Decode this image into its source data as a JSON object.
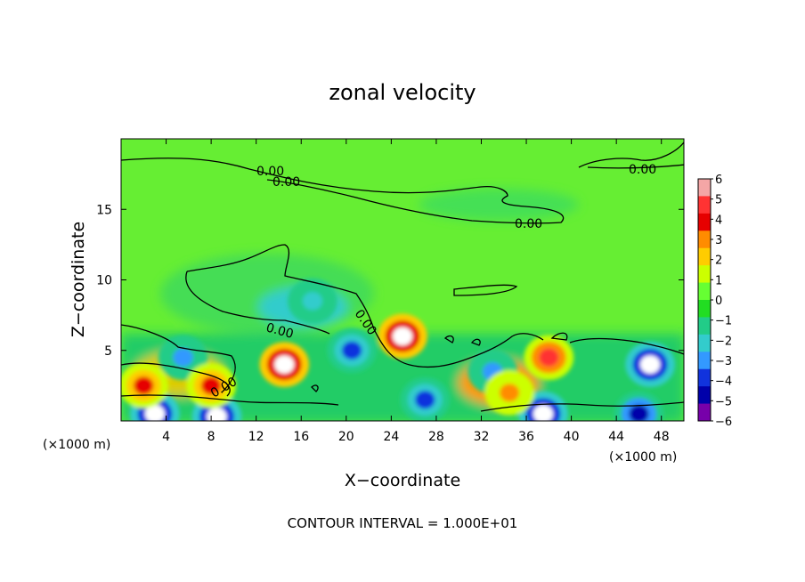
{
  "chart_data": {
    "type": "heatmap",
    "title": "zonal velocity",
    "xlabel": "X−coordinate",
    "ylabel": "Z−coordinate",
    "x_unit_left": "(×1000 m)",
    "x_unit_right": "(×1000 m)",
    "xlim": [
      0,
      50
    ],
    "ylim": [
      0,
      20
    ],
    "x_ticks": [
      4,
      8,
      12,
      16,
      20,
      24,
      28,
      32,
      36,
      40,
      44,
      48
    ],
    "y_ticks": [
      5,
      10,
      15
    ],
    "colorbar": {
      "ticks": [
        "6",
        "5",
        "4",
        "3",
        "2",
        "1",
        "0",
        "−1",
        "−2",
        "−3",
        "−4",
        "−5",
        "−6"
      ],
      "range": [
        -6,
        6
      ],
      "colors": [
        "#f4a6a6",
        "#ff3333",
        "#e60000",
        "#ff8c00",
        "#ffcc00",
        "#ccff00",
        "#66ff33",
        "#22dd22",
        "#22cc88",
        "#33cccc",
        "#3399ff",
        "#1133dd",
        "#0000aa",
        "#7700aa"
      ]
    },
    "contour_labels": [
      "0.00",
      "0.00",
      "0.00",
      "0.00",
      "0.00",
      "0.00",
      "0.00"
    ],
    "contour_interval_text": "CONTOUR INTERVAL = 1.000E+01",
    "features": [
      {
        "x": 25.0,
        "y": 6.0,
        "value": 6
      },
      {
        "x": 14.5,
        "y": 4.0,
        "value": 6
      },
      {
        "x": 38.0,
        "y": 4.5,
        "value": 5
      },
      {
        "x": 37.5,
        "y": 0.5,
        "value": -6
      },
      {
        "x": 47.0,
        "y": 4.0,
        "value": -6
      },
      {
        "x": 46.0,
        "y": 0.5,
        "value": -5
      },
      {
        "x": 20.5,
        "y": 5.0,
        "value": -4
      },
      {
        "x": 27.0,
        "y": 1.5,
        "value": -4
      },
      {
        "x": 17.0,
        "y": 8.5,
        "value": -2
      },
      {
        "x": 3.0,
        "y": 0.5,
        "value": -6
      },
      {
        "x": 8.5,
        "y": 0.3,
        "value": -6
      },
      {
        "x": 5.5,
        "y": 4.5,
        "value": -3
      },
      {
        "x": 2.0,
        "y": 2.5,
        "value": 4
      },
      {
        "x": 8.0,
        "y": 2.5,
        "value": 4
      },
      {
        "x": 33.0,
        "y": 3.5,
        "value": -3
      },
      {
        "x": 34.5,
        "y": 2.0,
        "value": 3
      }
    ]
  }
}
